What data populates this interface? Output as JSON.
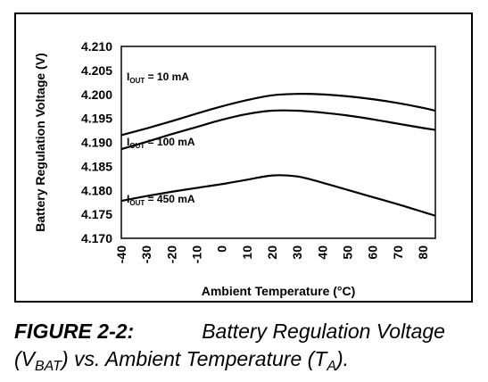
{
  "chart_data": {
    "type": "line",
    "xlabel": "Ambient Temperature (°C)",
    "ylabel": "Battery Regulation Voltage (V)",
    "x_ticks": [
      "-40",
      "-30",
      "-20",
      "-10",
      "0",
      "10",
      "20",
      "30",
      "40",
      "50",
      "60",
      "70",
      "80"
    ],
    "y_ticks": [
      "4.210",
      "4.205",
      "4.200",
      "4.195",
      "4.190",
      "4.185",
      "4.180",
      "4.175",
      "4.170"
    ],
    "xlim": [
      -40,
      85
    ],
    "ylim": [
      4.17,
      4.21
    ],
    "grid": false,
    "series": [
      {
        "name_parts": {
          "main": "I",
          "sub": "OUT",
          "rest": " = 10 mA"
        },
        "x": [
          -40,
          -30,
          -20,
          -10,
          0,
          10,
          20,
          30,
          40,
          50,
          60,
          70,
          80,
          85
        ],
        "y": [
          4.1915,
          4.1929,
          4.1944,
          4.196,
          4.1975,
          4.1988,
          4.1998,
          4.2001,
          4.2,
          4.1996,
          4.199,
          4.1982,
          4.1972,
          4.1966
        ]
      },
      {
        "name_parts": {
          "main": "I",
          "sub": "OUT",
          "rest": " = 100 mA"
        },
        "x": [
          -40,
          -30,
          -20,
          -10,
          0,
          10,
          20,
          30,
          40,
          50,
          60,
          70,
          80,
          85
        ],
        "y": [
          4.1886,
          4.1901,
          4.1917,
          4.1932,
          4.1947,
          4.1959,
          4.1966,
          4.1966,
          4.1962,
          4.1956,
          4.1948,
          4.1939,
          4.193,
          4.1926
        ]
      },
      {
        "name_parts": {
          "main": "I",
          "sub": "OUT",
          "rest": " = 450 mA"
        },
        "x": [
          -40,
          -30,
          -20,
          -10,
          0,
          10,
          20,
          30,
          40,
          50,
          60,
          70,
          80,
          85
        ],
        "y": [
          4.1778,
          4.1788,
          4.1797,
          4.1805,
          4.1813,
          4.1822,
          4.1831,
          4.1829,
          4.1816,
          4.1801,
          4.1786,
          4.1771,
          4.1755,
          4.1747
        ]
      }
    ]
  },
  "caption": {
    "figure_number": "FIGURE 2-2:",
    "text_a": "Battery Regulation Voltage (V",
    "sub_a": "BAT",
    "text_b": ") vs. Ambient Temperature (T",
    "sub_b": "A",
    "text_c": ")."
  }
}
